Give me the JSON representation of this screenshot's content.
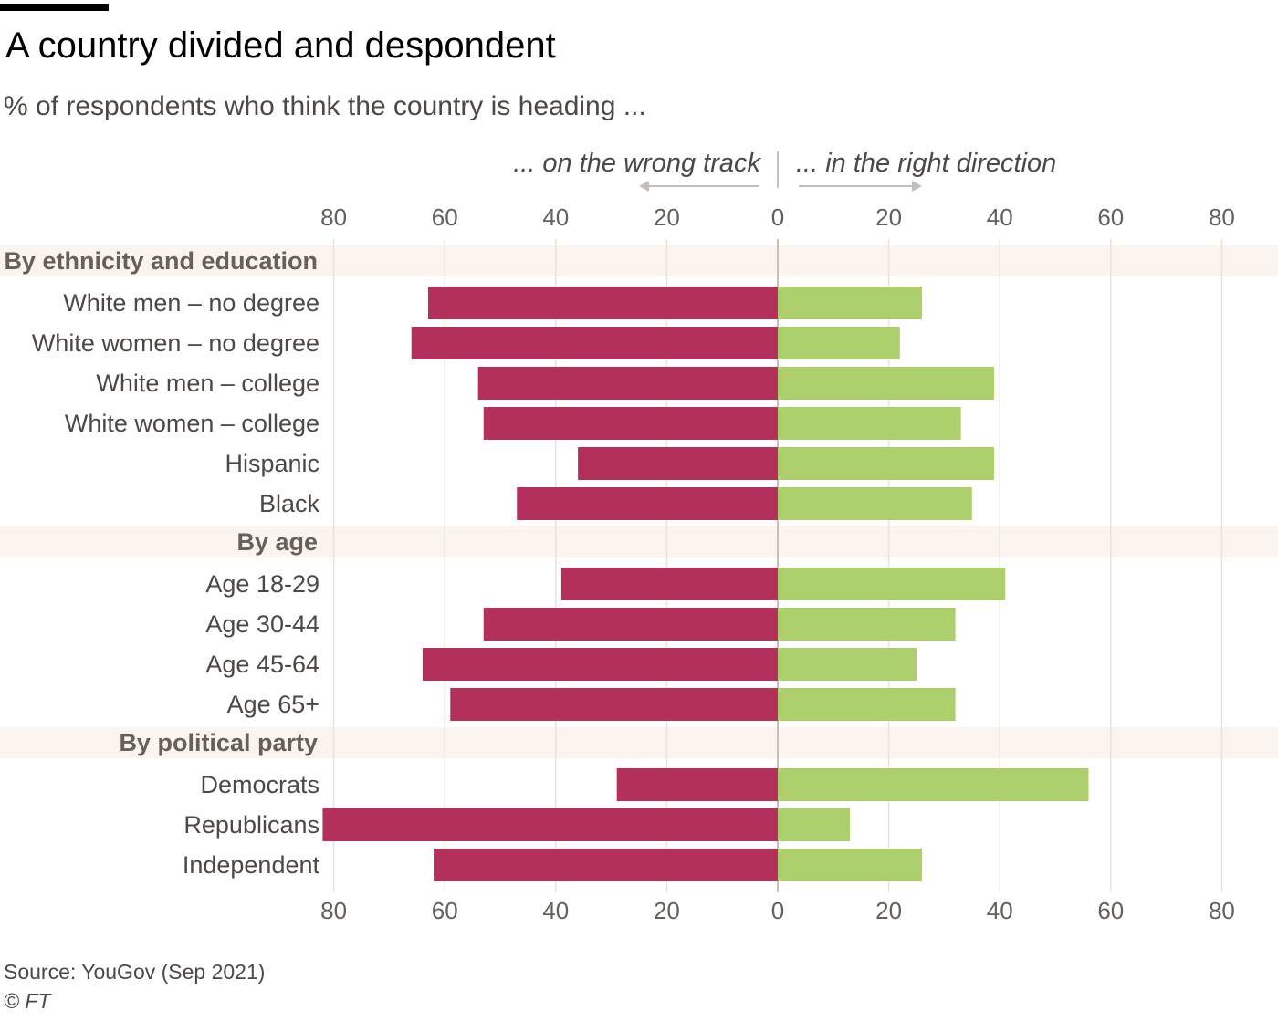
{
  "title": "A country divided and despondent",
  "subtitle": "% of respondents who think the country is heading ...",
  "source": "Source: YouGov (Sep 2021)",
  "copyright": "© FT",
  "colors": {
    "wrong": "#b2305a",
    "right": "#adcf6b",
    "band": "#fbf4ee",
    "grid": "#e8e1dc",
    "axis": "#b3aca7",
    "arrow": "#c2bdb8"
  },
  "chart_data": {
    "type": "bar",
    "orientation": "horizontal-diverging",
    "headers": {
      "left": "... on the wrong track",
      "right": "... in the right direction"
    },
    "ticks_left": [
      "80",
      "60",
      "40",
      "20",
      "0"
    ],
    "ticks_right": [
      "20",
      "40",
      "60",
      "80"
    ],
    "xlim": [
      -80,
      80
    ],
    "grid": true,
    "series_names": [
      "... on the wrong track",
      "... in the right direction"
    ],
    "groups": [
      {
        "label": "By ethnicity and education",
        "rows": [
          {
            "label": "White men – no degree",
            "wrong": 63,
            "right": 26
          },
          {
            "label": "White women – no degree",
            "wrong": 66,
            "right": 22
          },
          {
            "label": "White men – college",
            "wrong": 54,
            "right": 39
          },
          {
            "label": "White women – college",
            "wrong": 53,
            "right": 33
          },
          {
            "label": "Hispanic",
            "wrong": 36,
            "right": 39
          },
          {
            "label": "Black",
            "wrong": 47,
            "right": 35
          }
        ]
      },
      {
        "label": "By age",
        "rows": [
          {
            "label": "Age 18-29",
            "wrong": 39,
            "right": 41
          },
          {
            "label": "Age 30-44",
            "wrong": 53,
            "right": 32
          },
          {
            "label": "Age 45-64",
            "wrong": 64,
            "right": 25
          },
          {
            "label": "Age 65+",
            "wrong": 59,
            "right": 32
          }
        ]
      },
      {
        "label": "By political party",
        "rows": [
          {
            "label": "Democrats",
            "wrong": 29,
            "right": 56
          },
          {
            "label": "Republicans",
            "wrong": 82,
            "right": 13
          },
          {
            "label": "Independent",
            "wrong": 62,
            "right": 26
          }
        ]
      }
    ]
  }
}
